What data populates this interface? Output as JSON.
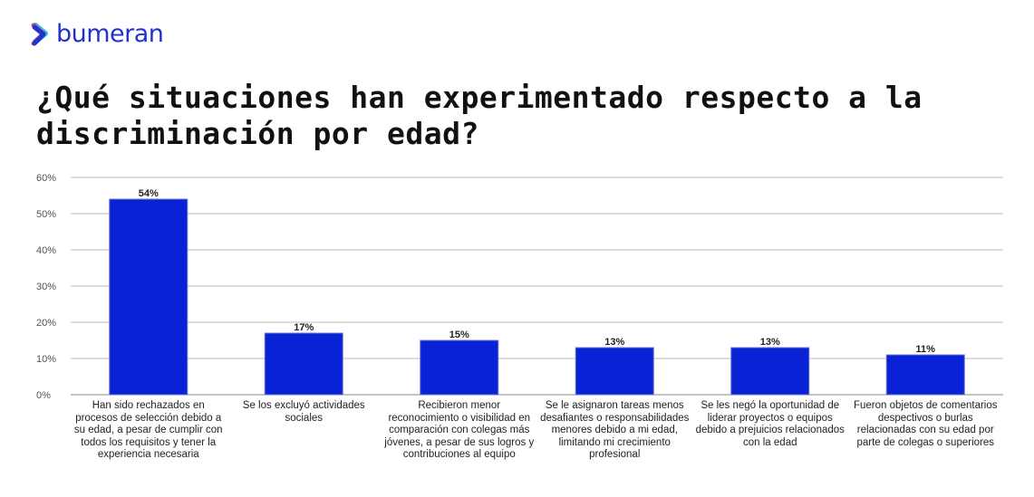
{
  "brand": {
    "name": "bumeran",
    "colors": {
      "primary": "#2233cc",
      "accent": "#e0197d",
      "accent2": "#27c6e0"
    }
  },
  "title": "¿Qué situaciones han experimentado respecto a la discriminación por edad?",
  "chart_data": {
    "type": "bar",
    "title": "",
    "xlabel": "",
    "ylabel": "",
    "ylim": [
      0,
      60
    ],
    "y_ticks": [
      "0%",
      "10%",
      "20%",
      "30%",
      "40%",
      "50%",
      "60%"
    ],
    "grid": true,
    "bar_color": "#0a22d6",
    "categories": [
      "Han sido rechazados en procesos de selección debido a su edad, a pesar de cumplir con todos los requisitos y tener la experiencia necesaria",
      "Se los excluyó actividades sociales",
      "Recibieron menor reconocimiento o visibilidad en comparación con colegas más jóvenes, a pesar de sus logros y contribuciones al equipo",
      "Se le asignaron tareas menos desafiantes o responsabilidades menores debido a mi edad, limitando mi crecimiento profesional",
      "Se les negó la oportunidad de liderar proyectos o equipos debido a prejuicios relacionados con la edad",
      "Fueron objetos de comentarios despectivos o burlas relacionadas con su edad por parte de colegas o superiores"
    ],
    "values": [
      54,
      17,
      15,
      13,
      13,
      11
    ],
    "data_labels": [
      "54%",
      "17%",
      "15%",
      "13%",
      "13%",
      "11%"
    ]
  }
}
